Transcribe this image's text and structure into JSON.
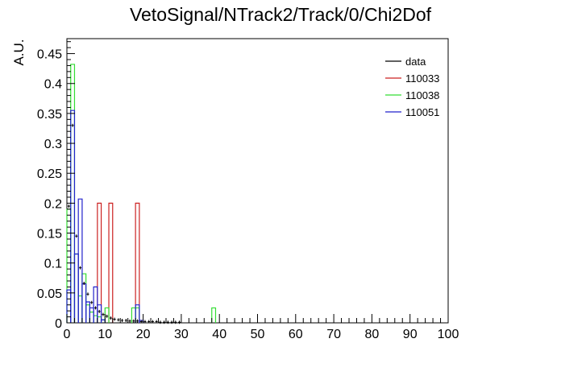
{
  "chart_data": {
    "type": "histogram",
    "title": "VetoSignal/NTrack2/Track/0/Chi2Dof",
    "xlabel": "",
    "ylabel": "A.U.",
    "xlim": [
      0,
      100
    ],
    "ylim": [
      0,
      0.475
    ],
    "bin_width": 1,
    "x_ticks": [
      "0",
      "10",
      "20",
      "30",
      "40",
      "50",
      "60",
      "70",
      "80",
      "90",
      "100"
    ],
    "y_ticks": [
      "0",
      "0.05",
      "0.1",
      "0.15",
      "0.2",
      "0.25",
      "0.3",
      "0.35",
      "0.4",
      "0.45"
    ],
    "legend_position": "top-right",
    "series": [
      {
        "name": "data",
        "color": "#000000",
        "style": "points",
        "bin_lo": [
          0,
          1,
          2,
          3,
          4,
          5,
          6,
          7,
          8,
          9,
          10,
          11,
          12,
          13,
          14,
          15,
          16,
          17,
          18,
          19,
          20,
          21,
          22,
          23,
          24,
          25,
          26,
          27,
          28,
          29
        ],
        "values": [
          0.195,
          0.33,
          0.145,
          0.092,
          0.066,
          0.048,
          0.034,
          0.025,
          0.019,
          0.014,
          0.011,
          0.008,
          0.006,
          0.005,
          0.004,
          0.004,
          0.003,
          0.003,
          0.003,
          0.002,
          0.002,
          0.002,
          0.002,
          0.002,
          0.001,
          0.001,
          0.001,
          0.001,
          0.001,
          0.001
        ]
      },
      {
        "name": "110033",
        "color": "#cc2222",
        "style": "step",
        "bin_lo": [
          8,
          11,
          18
        ],
        "values": [
          0.2,
          0.2,
          0.2
        ]
      },
      {
        "name": "110038",
        "color": "#33dd33",
        "style": "step",
        "bin_lo": [
          0,
          1,
          2,
          3,
          4,
          5,
          6,
          7,
          8,
          9,
          10,
          17,
          18,
          38
        ],
        "values": [
          0.19,
          0.432,
          0.115,
          0.045,
          0.082,
          0.03,
          0.018,
          0.012,
          0.01,
          0.005,
          0.025,
          0.025,
          0.025,
          0.025
        ]
      },
      {
        "name": "110051",
        "color": "#2222cc",
        "style": "step",
        "bin_lo": [
          0,
          1,
          2,
          3,
          4,
          5,
          6,
          7,
          8,
          9,
          18,
          19
        ],
        "values": [
          0.055,
          0.355,
          0.115,
          0.207,
          0.065,
          0.035,
          0.025,
          0.06,
          0.03,
          0.005,
          0.03,
          0.004
        ]
      }
    ]
  }
}
